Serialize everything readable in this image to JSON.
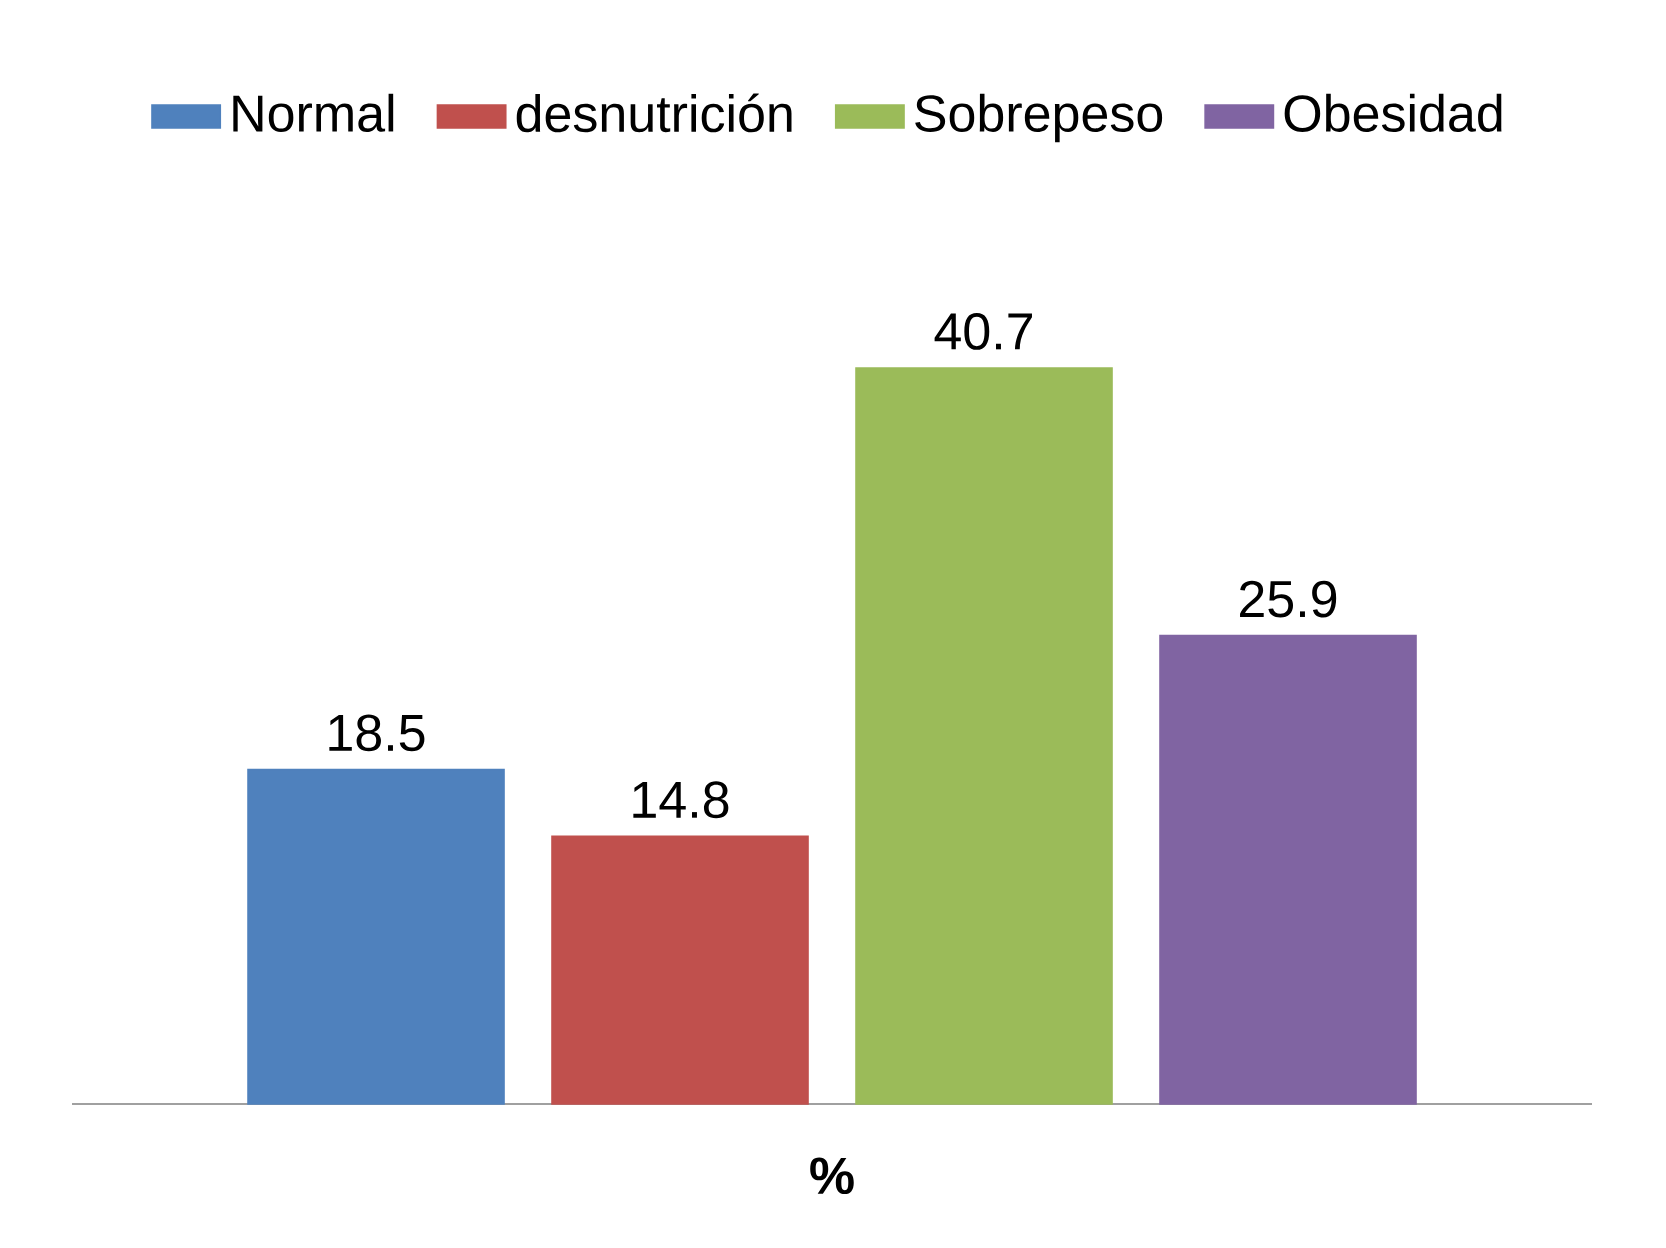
{
  "chart_data": {
    "type": "bar",
    "xlabel": "%",
    "categories": [
      null,
      null,
      null,
      null
    ],
    "stacked": true,
    "series": [
      {
        "name": "Normal",
        "color": "#4f81bd",
        "values": [
          18.5,
          null,
          null,
          null
        ]
      },
      {
        "name": "desnutrición",
        "color": "#c0504d",
        "values": [
          null,
          14.8,
          null,
          null
        ]
      },
      {
        "name": "Sobrepeso",
        "color": "#9bbb59",
        "values": [
          null,
          null,
          40.7,
          null
        ]
      },
      {
        "name": "Obesidad",
        "color": "#8064a2",
        "values": [
          null,
          null,
          null,
          25.9
        ]
      }
    ],
    "data_labels": true,
    "legend": "top"
  }
}
